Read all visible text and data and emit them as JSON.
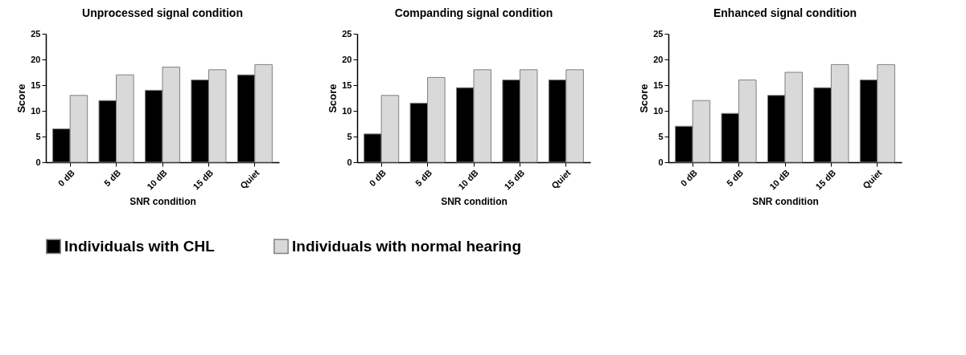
{
  "chart_data": [
    {
      "type": "bar",
      "title": "Unprocessed signal condition",
      "xlabel": "SNR condition",
      "ylabel": "Score",
      "categories": [
        "0 dB",
        "5 dB",
        "10 dB",
        "15 dB",
        "Quiet"
      ],
      "ylim": [
        0,
        25
      ],
      "yticks": [
        0,
        5,
        10,
        15,
        20,
        25
      ],
      "grid": false,
      "legend": "bottom",
      "series": [
        {
          "name": "Individuals with CHL",
          "color": "#000000",
          "values": [
            6.5,
            12,
            14,
            16,
            17
          ]
        },
        {
          "name": "Individuals with normal hearing",
          "color": "#d9d9d9",
          "values": [
            13,
            17,
            18.5,
            18,
            19
          ]
        }
      ]
    },
    {
      "type": "bar",
      "title": "Companding signal condition",
      "xlabel": "SNR condition",
      "ylabel": "Score",
      "categories": [
        "0 dB",
        "5 dB",
        "10 dB",
        "15 dB",
        "Quiet"
      ],
      "ylim": [
        0,
        25
      ],
      "yticks": [
        0,
        5,
        10,
        15,
        20,
        25
      ],
      "grid": false,
      "legend": "bottom",
      "series": [
        {
          "name": "Individuals with CHL",
          "color": "#000000",
          "values": [
            5.5,
            11.5,
            14.5,
            16,
            16
          ]
        },
        {
          "name": "Individuals with normal hearing",
          "color": "#d9d9d9",
          "values": [
            13,
            16.5,
            18,
            18,
            18
          ]
        }
      ]
    },
    {
      "type": "bar",
      "title": "Enhanced signal condition",
      "xlabel": "SNR condition",
      "ylabel": "Score",
      "categories": [
        "0 dB",
        "5 dB",
        "10 dB",
        "15 dB",
        "Quiet"
      ],
      "ylim": [
        0,
        25
      ],
      "yticks": [
        0,
        5,
        10,
        15,
        20,
        25
      ],
      "grid": false,
      "legend": "bottom",
      "series": [
        {
          "name": "Individuals with CHL",
          "color": "#000000",
          "values": [
            7,
            9.5,
            13,
            14.5,
            16
          ]
        },
        {
          "name": "Individuals with normal hearing",
          "color": "#d9d9d9",
          "values": [
            12,
            16,
            17.5,
            19,
            19
          ]
        }
      ]
    }
  ]
}
